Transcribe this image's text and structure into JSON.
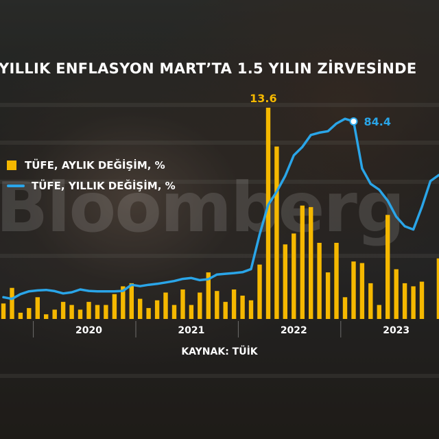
{
  "title": "YILLIK ENFLASYON MART’TA 1.5 YILIN ZİRVESİNDE",
  "watermark": "Bloomberg",
  "source": "KAYNAK: TÜİK",
  "colors": {
    "bar": "#f5b800",
    "line": "#2aa5e8",
    "text": "#ffffff"
  },
  "chart_data": {
    "type": "bar",
    "x_labels": [
      "2020",
      "2021",
      "2022",
      "2023"
    ],
    "series": [
      {
        "name": "TÜFE, AYLIK DEĞİŞİM, %",
        "type": "bar",
        "unit": "%",
        "start": "2019-09",
        "values": [
          1.0,
          2.0,
          0.4,
          0.7,
          1.4,
          0.3,
          0.6,
          1.1,
          0.9,
          0.6,
          1.1,
          0.9,
          0.9,
          1.6,
          2.1,
          2.3,
          1.3,
          0.7,
          1.2,
          1.7,
          0.9,
          1.9,
          0.9,
          1.7,
          3.0,
          1.8,
          1.1,
          1.9,
          1.5,
          1.2,
          3.5,
          13.6,
          11.1,
          4.8,
          5.5,
          7.3,
          7.2,
          4.9,
          3.0,
          4.9,
          1.4,
          3.7,
          3.6,
          2.3,
          0.9,
          6.7,
          3.2,
          2.3,
          2.1,
          2.4,
          0.0,
          3.9,
          9.5,
          9.0,
          4.7,
          3.4,
          3.3,
          2.9,
          6.7,
          4.5,
          3.2,
          2.2
        ],
        "annotation": {
          "label": "13.6",
          "index": 31
        }
      },
      {
        "name": "TÜFE, YILLIK DEĞİŞİM, %",
        "type": "line",
        "unit": "%",
        "start": "2019-09",
        "values": [
          9.3,
          8.6,
          10.6,
          11.8,
          12.2,
          12.4,
          11.9,
          10.9,
          11.4,
          12.6,
          12.0,
          11.8,
          11.8,
          11.8,
          12.0,
          14.6,
          14.0,
          14.6,
          15.0,
          15.6,
          16.2,
          17.1,
          17.5,
          16.6,
          17.0,
          19.0,
          19.3,
          19.6,
          20.0,
          21.3,
          36.1,
          48.7,
          54.4,
          61.1,
          69.9,
          73.5,
          78.6,
          79.6,
          80.2,
          83.5,
          85.5,
          84.4,
          64.3,
          57.7,
          55.2,
          50.5,
          43.7,
          39.6,
          38.2,
          47.8,
          58.9,
          61.5,
          61.4,
          61.4,
          64.8,
          64.9,
          67.1,
          68.5,
          69.8,
          68.0,
          67.5,
          66.0
        ],
        "annotation": {
          "label": "84.4",
          "index": 41
        }
      }
    ]
  }
}
